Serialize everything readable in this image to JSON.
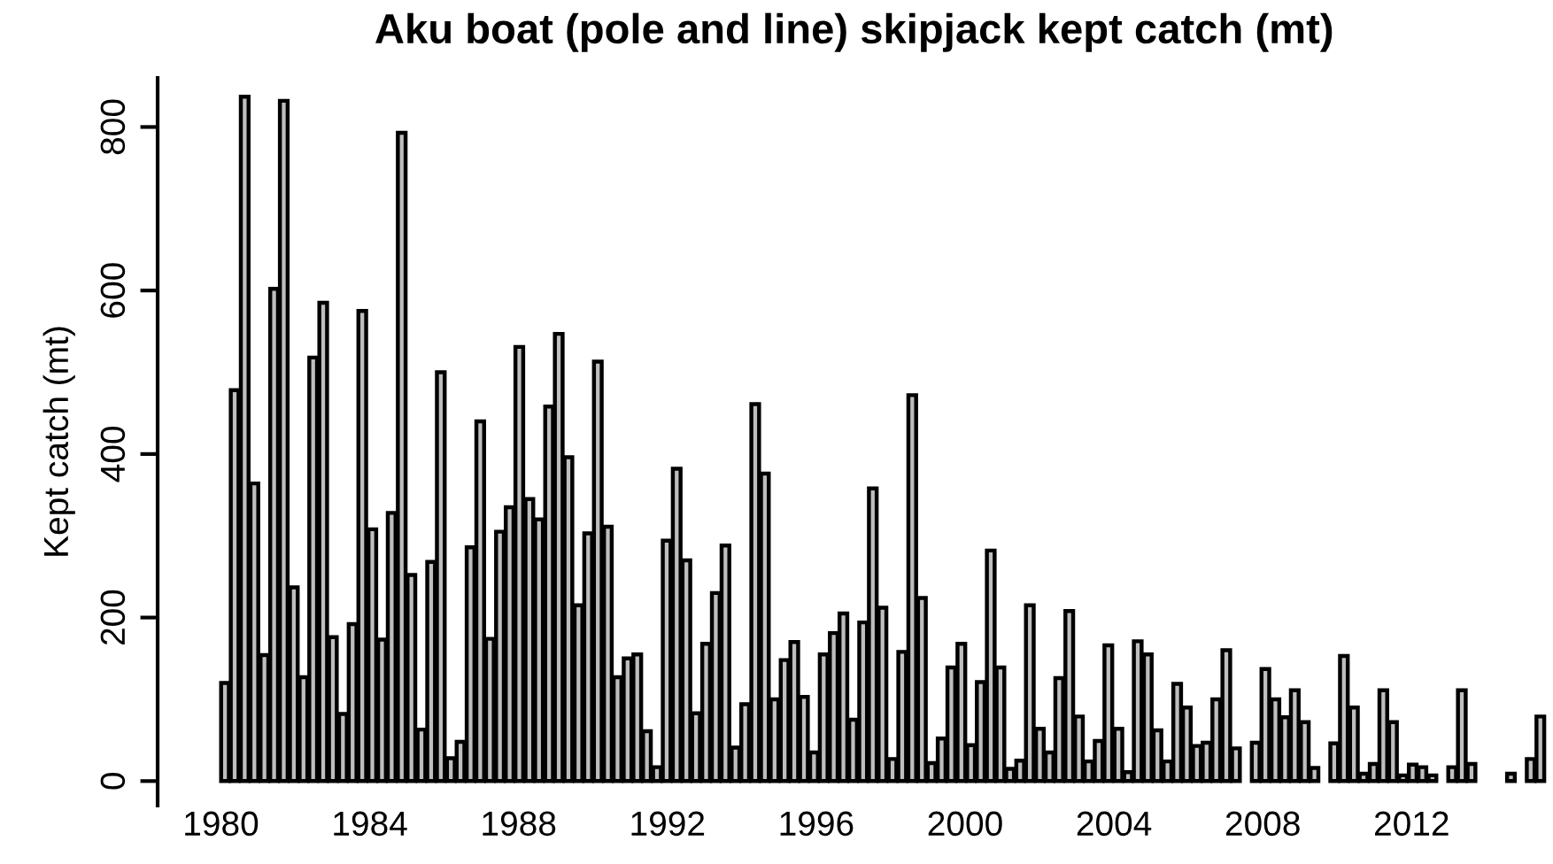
{
  "chart_data": {
    "type": "bar",
    "title": "Aku boat (pole and line) skipjack kept catch (mt)",
    "ylabel": "Kept catch (mt)",
    "x": [
      1980.11,
      1980.37,
      1980.64,
      1980.9,
      1981.17,
      1981.43,
      1981.69,
      1981.96,
      1982.22,
      1982.48,
      1982.75,
      1983.01,
      1983.28,
      1983.54,
      1983.8,
      1984.07,
      1984.33,
      1984.59,
      1984.86,
      1985.12,
      1985.39,
      1985.65,
      1985.91,
      1986.18,
      1986.44,
      1986.71,
      1986.97,
      1987.23,
      1987.5,
      1987.76,
      1988.02,
      1988.29,
      1988.55,
      1988.82,
      1989.08,
      1989.34,
      1989.61,
      1989.87,
      1990.13,
      1990.4,
      1990.66,
      1990.93,
      1991.19,
      1991.45,
      1991.72,
      1991.98,
      1992.25,
      1992.51,
      1992.77,
      1993.04,
      1993.3,
      1993.56,
      1993.83,
      1994.09,
      1994.36,
      1994.62,
      1994.88,
      1995.15,
      1995.41,
      1995.67,
      1995.94,
      1996.2,
      1996.47,
      1996.73,
      1996.99,
      1997.26,
      1997.52,
      1997.78,
      1998.05,
      1998.31,
      1998.58,
      1998.84,
      1999.1,
      1999.37,
      1999.63,
      1999.9,
      2000.16,
      2000.42,
      2000.69,
      2000.95,
      2001.21,
      2001.48,
      2001.74,
      2002.01,
      2002.27,
      2002.53,
      2002.8,
      2003.06,
      2003.32,
      2003.59,
      2003.85,
      2004.12,
      2004.38,
      2004.64,
      2004.91,
      2005.17,
      2005.44,
      2005.7,
      2005.96,
      2006.23,
      2006.49,
      2006.75,
      2007.02,
      2007.28,
      2007.55,
      2007.81,
      2008.07,
      2008.34,
      2008.6,
      2008.86,
      2009.13,
      2009.39,
      2009.66,
      2009.92,
      2010.18,
      2010.45,
      2010.71,
      2010.98,
      2011.24,
      2011.5,
      2011.77,
      2012.03,
      2012.29,
      2012.56,
      2012.82,
      2013.09,
      2013.35,
      2013.61,
      2013.88,
      2014.14,
      2014.4,
      2014.67,
      2014.93,
      2015.2,
      2015.46
    ],
    "values": [
      120,
      478,
      837,
      364,
      154,
      602,
      832,
      237,
      127,
      518,
      585,
      176,
      82,
      192,
      575,
      308,
      173,
      328,
      793,
      252,
      63,
      268,
      500,
      28,
      48,
      286,
      440,
      174,
      305,
      335,
      531,
      345,
      320,
      458,
      547,
      396,
      215,
      303,
      513,
      311,
      127,
      150,
      155,
      61,
      17,
      294,
      382,
      270,
      83,
      168,
      230,
      288,
      41,
      94,
      461,
      376,
      100,
      148,
      170,
      103,
      35,
      155,
      181,
      205,
      75,
      194,
      358,
      212,
      27,
      158,
      472,
      224,
      22,
      52,
      139,
      168,
      44,
      121,
      282,
      139,
      15,
      25,
      215,
      64,
      35,
      126,
      208,
      79,
      24,
      49,
      166,
      64,
      11,
      171,
      155,
      62,
      24,
      119,
      90,
      43,
      47,
      100,
      160,
      40,
      null,
      47,
      137,
      100,
      78,
      111,
      72,
      16,
      null,
      46,
      153,
      90,
      9,
      21,
      111,
      72,
      7,
      20,
      17,
      7,
      null,
      17,
      111,
      21,
      null,
      null,
      null,
      9,
      null,
      27,
      79
    ],
    "color": "#bebebe",
    "xlim": [
      1978.3,
      2015.8
    ],
    "ylim": [
      -30,
      860
    ],
    "xticks": [
      1980,
      1984,
      1988,
      1992,
      1996,
      2000,
      2004,
      2008,
      2012
    ],
    "yticks": [
      0,
      200,
      400,
      600,
      800
    ],
    "grid": false
  }
}
